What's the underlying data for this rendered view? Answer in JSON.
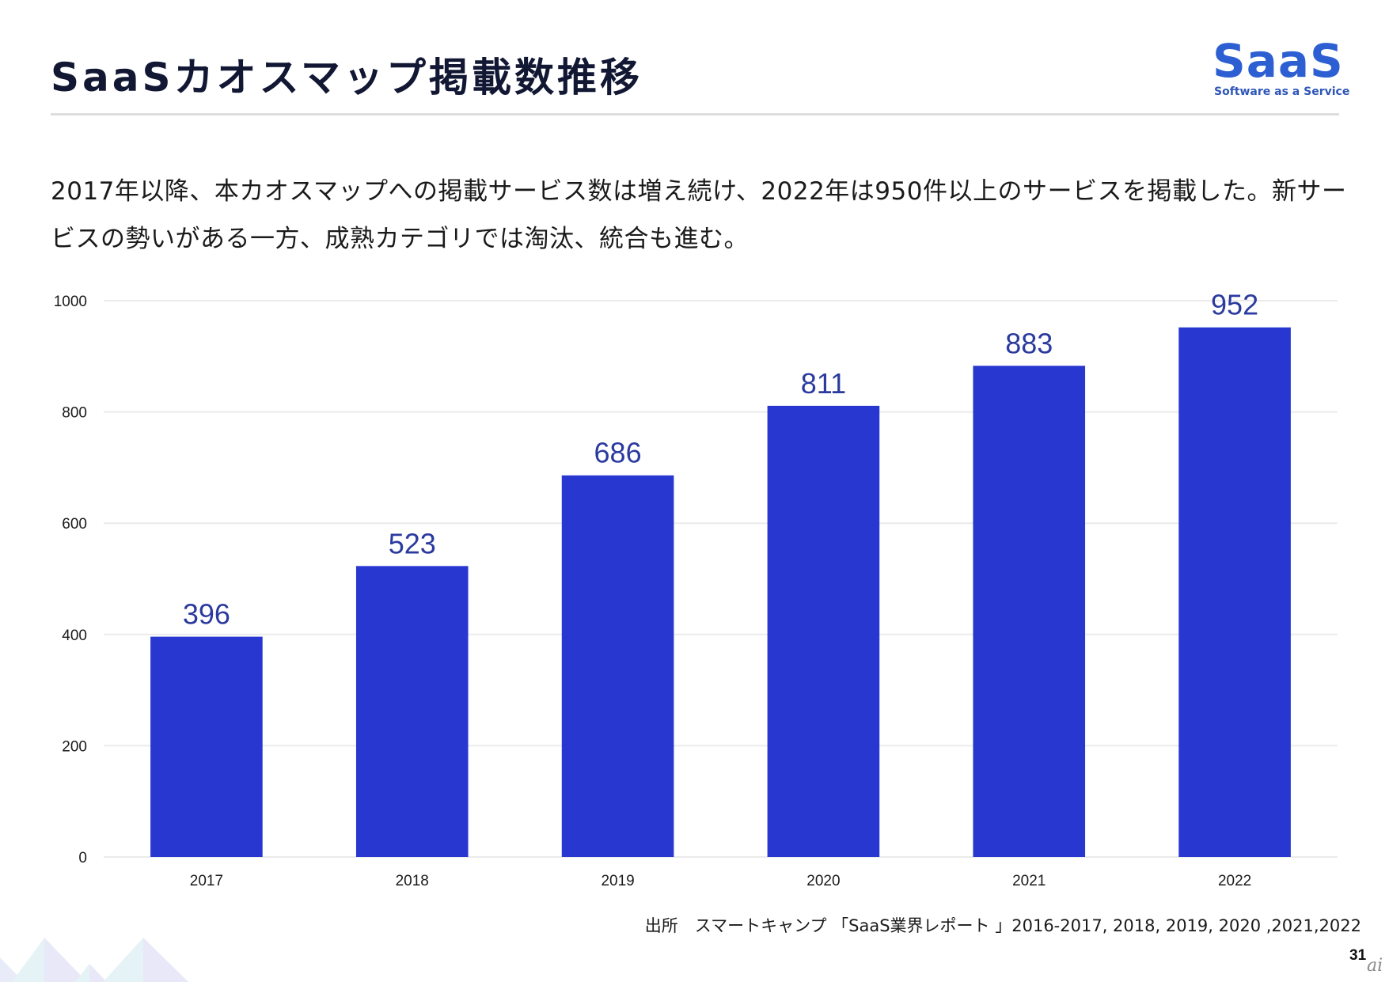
{
  "header": {
    "title": "SaaSカオスマップ掲載数推移",
    "logo_main": "SaaS",
    "logo_sub": "Software as a Service"
  },
  "description": "2017年以降、本カオスマップへの掲載サービス数は増え続け、2022年は950件以上のサービスを掲載した。新サービスの勢いがある一方、成熟カテゴリでは淘汰、統合も進む。",
  "footer": {
    "source": "出所　スマートキャンプ 「SaaS業界レポート 」2016-2017, 2018, 2019, 2020 ,2021,2022",
    "page_number": "31",
    "watermark": "ai"
  },
  "colors": {
    "bar": "#2837d0",
    "label": "#2b3a9e",
    "title": "#121733",
    "grid": "#ebebeb"
  },
  "chart_data": {
    "type": "bar",
    "title": "",
    "xlabel": "",
    "ylabel": "",
    "categories": [
      "2017",
      "2018",
      "2019",
      "2020",
      "2021",
      "2022"
    ],
    "values": [
      396,
      523,
      686,
      811,
      883,
      952
    ],
    "data_labels": [
      "396",
      "523",
      "686",
      "811",
      "883",
      "952"
    ],
    "ylim": [
      0,
      1000
    ],
    "yticks": [
      0,
      200,
      400,
      600,
      800,
      1000
    ],
    "ytick_labels": [
      "0",
      "200",
      "400",
      "600",
      "800",
      "1000"
    ],
    "grid": true,
    "legend": "none"
  }
}
